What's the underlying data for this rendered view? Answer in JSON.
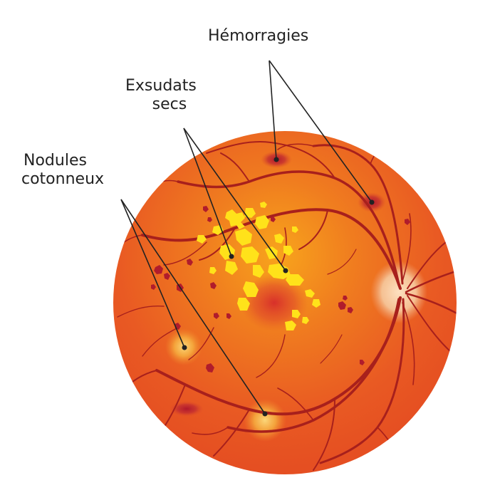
{
  "labels": {
    "hemorrhages": "Hémorragies",
    "hard_exudates": [
      "Exsudats",
      "secs"
    ],
    "cotton_wool_spots": [
      "Nodules",
      "cotonneux"
    ]
  },
  "colors": {
    "retina": "#ea5a22",
    "retina_glow": "#f6a21e",
    "vessel": "#a8201c",
    "exudate": "#ffe21a",
    "hemorrhage": "#b01c2c",
    "optic_disc": "#f6c89c",
    "leader_line": "#222222"
  }
}
